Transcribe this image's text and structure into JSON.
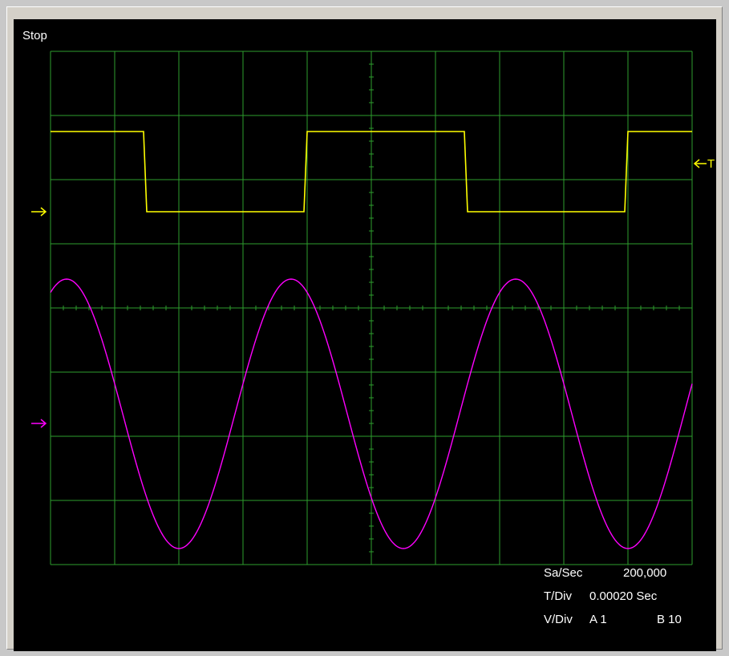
{
  "status": "Stop",
  "readouts": {
    "sa_sec_label": "Sa/Sec",
    "sa_sec_value": "200,000",
    "t_div_label": "T/Div",
    "t_div_value": "0.00020 Sec",
    "v_div_label": "V/Div",
    "v_div_a": "A 1",
    "v_div_b": "B 10"
  },
  "colors": {
    "background": "#000000",
    "grid": "#2e9e2e",
    "channel_a": "#ffff00",
    "channel_b": "#ff00ff",
    "text": "#ffffff"
  },
  "trigger_label": "T",
  "chart_data": {
    "type": "line",
    "title": "",
    "xlabel": "",
    "ylabel": "",
    "grid": true,
    "x_divisions": 10,
    "y_divisions": 8,
    "xlim": [
      0,
      10
    ],
    "ylim": [
      -4,
      4
    ],
    "series": [
      {
        "channel": "A",
        "shape": "square",
        "color": "#ffff00",
        "x": [
          0,
          1.45,
          1.5,
          3.95,
          4.0,
          6.45,
          6.5,
          8.95,
          9.0,
          10
        ],
        "y": [
          2.75,
          2.75,
          1.5,
          1.5,
          2.75,
          2.75,
          1.5,
          1.5,
          2.75,
          2.75
        ]
      },
      {
        "channel": "B",
        "shape": "sine",
        "color": "#ff00ff",
        "amplitude_div": 2.1,
        "offset_div": -1.65,
        "period_div": 3.5,
        "first_peak_div": 0.25,
        "x_range": [
          0,
          10
        ]
      }
    ],
    "markers": {
      "channel_a_ground_div": 1.5,
      "channel_b_ground_div": -1.8,
      "trigger_level_div": 2.25
    }
  }
}
